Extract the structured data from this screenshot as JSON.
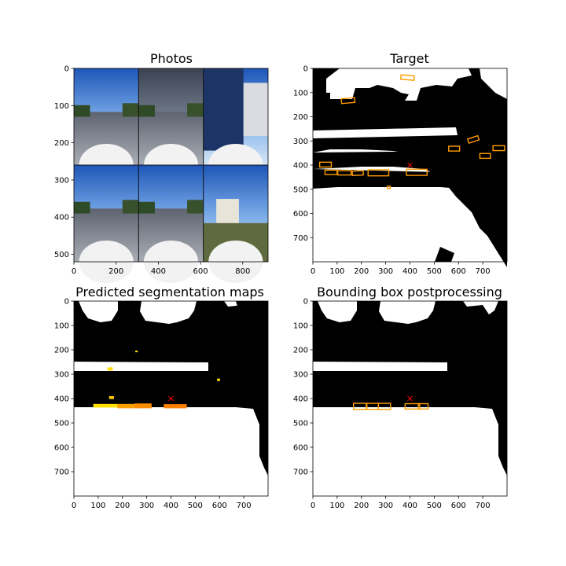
{
  "figure": {
    "panels": [
      {
        "id": "photos",
        "title": "Photos"
      },
      {
        "id": "target",
        "title": "Target"
      },
      {
        "id": "pred",
        "title": "Predicted segmentation maps"
      },
      {
        "id": "post",
        "title": "Bounding box postprocessing"
      }
    ]
  },
  "chart_data": [
    {
      "type": "image",
      "title": "Photos",
      "xlim": [
        0,
        920
      ],
      "ylim": [
        520,
        0
      ],
      "xticks": [
        0,
        200,
        400,
        600,
        800
      ],
      "yticks": [
        0,
        100,
        200,
        300,
        400,
        500
      ],
      "tiles": [
        {
          "row": 0,
          "col": 0,
          "scene": "street-sky"
        },
        {
          "row": 0,
          "col": 1,
          "scene": "road-overcast"
        },
        {
          "row": 0,
          "col": 2,
          "scene": "truck-side"
        },
        {
          "row": 1,
          "col": 0,
          "scene": "wet-road-left"
        },
        {
          "row": 1,
          "col": 1,
          "scene": "road-bus-ahead"
        },
        {
          "row": 1,
          "col": 2,
          "scene": "sidewalk-house"
        }
      ]
    },
    {
      "type": "image",
      "title": "Target",
      "xlim": [
        0,
        800
      ],
      "ylim": [
        800,
        0
      ],
      "xticks": [
        0,
        100,
        200,
        300,
        400,
        500,
        600,
        700
      ],
      "yticks": [
        0,
        100,
        200,
        300,
        400,
        500,
        600,
        700
      ],
      "ego_marker": {
        "x": 400,
        "y": 400
      },
      "boxes": [
        {
          "cx": 145,
          "cy": 133,
          "w": 55,
          "h": 20,
          "angle": -5
        },
        {
          "cx": 390,
          "cy": 38,
          "w": 55,
          "h": 18,
          "angle": 5
        },
        {
          "cx": 52,
          "cy": 398,
          "w": 48,
          "h": 20,
          "angle": 0
        },
        {
          "cx": 75,
          "cy": 430,
          "w": 50,
          "h": 18,
          "angle": 0
        },
        {
          "cx": 130,
          "cy": 432,
          "w": 55,
          "h": 18,
          "angle": 0
        },
        {
          "cx": 185,
          "cy": 433,
          "w": 45,
          "h": 18,
          "angle": -3
        },
        {
          "cx": 270,
          "cy": 432,
          "w": 85,
          "h": 25,
          "angle": 0
        },
        {
          "cx": 428,
          "cy": 430,
          "w": 85,
          "h": 25,
          "angle": 0
        },
        {
          "cx": 582,
          "cy": 332,
          "w": 45,
          "h": 20,
          "angle": 0
        },
        {
          "cx": 661,
          "cy": 294,
          "w": 44,
          "h": 18,
          "angle": -18
        },
        {
          "cx": 710,
          "cy": 362,
          "w": 44,
          "h": 20,
          "angle": 0
        },
        {
          "cx": 766,
          "cy": 330,
          "w": 48,
          "h": 20,
          "angle": 0
        },
        {
          "cx": 313,
          "cy": 492,
          "w": 12,
          "h": 10,
          "angle": 0
        }
      ]
    },
    {
      "type": "image",
      "title": "Predicted segmentation maps",
      "xlim": [
        0,
        800
      ],
      "ylim": [
        800,
        0
      ],
      "xticks": [
        0,
        100,
        200,
        300,
        400,
        500,
        600,
        700
      ],
      "yticks": [
        0,
        100,
        200,
        300,
        400,
        500,
        600,
        700
      ],
      "ego_marker": {
        "x": 400,
        "y": 400
      },
      "blobs": [
        {
          "x1": 80,
          "y1": 422,
          "x2": 180,
          "y2": 437,
          "color": "#ffe000"
        },
        {
          "x1": 145,
          "y1": 390,
          "x2": 165,
          "y2": 402,
          "color": "#ffd000"
        },
        {
          "x1": 180,
          "y1": 422,
          "x2": 260,
          "y2": 440,
          "color": "#ffa000"
        },
        {
          "x1": 250,
          "y1": 420,
          "x2": 320,
          "y2": 440,
          "color": "#ff8c00"
        },
        {
          "x1": 370,
          "y1": 423,
          "x2": 465,
          "y2": 440,
          "color": "#ff8000"
        },
        {
          "x1": 138,
          "y1": 272,
          "x2": 160,
          "y2": 285,
          "color": "#ffe000"
        },
        {
          "x1": 590,
          "y1": 318,
          "x2": 602,
          "y2": 328,
          "color": "#ffe000"
        },
        {
          "x1": 253,
          "y1": 203,
          "x2": 263,
          "y2": 210,
          "color": "#ffe000"
        }
      ]
    },
    {
      "type": "image",
      "title": "Bounding box postprocessing",
      "xlim": [
        0,
        800
      ],
      "ylim": [
        800,
        0
      ],
      "xticks": [
        0,
        100,
        200,
        300,
        400,
        500,
        600,
        700
      ],
      "yticks": [
        0,
        100,
        200,
        300,
        400,
        500,
        600,
        700
      ],
      "ego_marker": {
        "x": 400,
        "y": 400
      },
      "boxes": [
        {
          "cx": 195,
          "cy": 432,
          "w": 55,
          "h": 25,
          "angle": 0
        },
        {
          "cx": 245,
          "cy": 432,
          "w": 50,
          "h": 25,
          "angle": 0
        },
        {
          "cx": 295,
          "cy": 432,
          "w": 50,
          "h": 25,
          "angle": 0
        },
        {
          "cx": 410,
          "cy": 432,
          "w": 60,
          "h": 22,
          "angle": 0
        },
        {
          "cx": 455,
          "cy": 432,
          "w": 40,
          "h": 22,
          "angle": 0
        }
      ]
    }
  ]
}
